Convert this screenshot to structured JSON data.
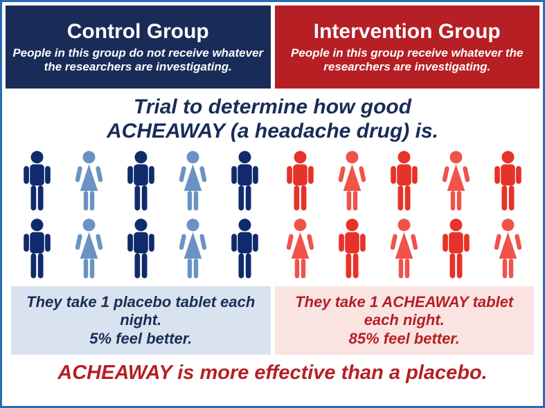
{
  "type": "infographic",
  "border_color": "#2a6bb5",
  "background_color": "#ffffff",
  "control": {
    "header_bg": "#192c58",
    "title": "Control Group",
    "subtitle": "People in this group do not receive whatever the researchers are investigating.",
    "male_color": "#0f2b6d",
    "female_color": "#6a93c4",
    "people_row1": [
      "m",
      "f",
      "m",
      "f",
      "m"
    ],
    "people_row2": [
      "m",
      "f",
      "m",
      "f",
      "m"
    ],
    "result_bg": "#d9e2ef",
    "result_text_color": "#192c58",
    "result_line1": "They take 1 placebo tablet each night.",
    "result_line2": "5% feel better."
  },
  "intervention": {
    "header_bg": "#b61f24",
    "title": "Intervention Group",
    "subtitle": "People in this group receive whatever the researchers are investigating.",
    "male_color": "#e63329",
    "female_color": "#f0534a",
    "people_row1": [
      "m",
      "f",
      "m",
      "f",
      "m"
    ],
    "people_row2": [
      "f",
      "m",
      "f",
      "m",
      "f"
    ],
    "result_bg": "#f9e4e2",
    "result_text_color": "#b61f24",
    "result_line1": "They take 1 ACHEAWAY tablet each night.",
    "result_line2": "85% feel better."
  },
  "trial_title_line1": "Trial to determine how good",
  "trial_title_line2": "ACHEAWAY (a headache drug) is.",
  "trial_title_color": "#192c58",
  "conclusion_text": "ACHEAWAY is more effective than a placebo.",
  "conclusion_color": "#b61f24"
}
